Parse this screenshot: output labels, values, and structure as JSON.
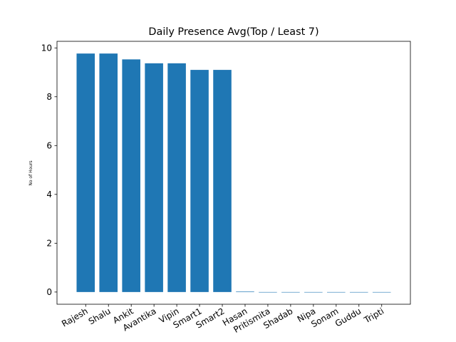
{
  "chart_data": {
    "type": "bar",
    "title": "Daily Presence Avg(Top / Least 7)",
    "xlabel": "",
    "ylabel": "No of Hours",
    "categories": [
      "Rajesh",
      "Shalu",
      "Ankit",
      "Avantika",
      "Vipin",
      "Smart1",
      "Smart2",
      "Hasan",
      "Pritismita",
      "Shadab",
      "Nipa",
      "Sonam",
      "Guddu",
      "Tripti"
    ],
    "values": [
      9.77,
      9.77,
      9.53,
      9.37,
      9.37,
      9.1,
      9.1,
      0.02,
      0,
      0,
      0,
      0,
      0,
      0
    ],
    "ylim": [
      -0.5,
      10.27
    ],
    "yticks": [
      0,
      2,
      4,
      6,
      8,
      10
    ],
    "xtick_rotation": 30,
    "bar_color": "#1f77b4",
    "grid": false,
    "legend": "none"
  }
}
